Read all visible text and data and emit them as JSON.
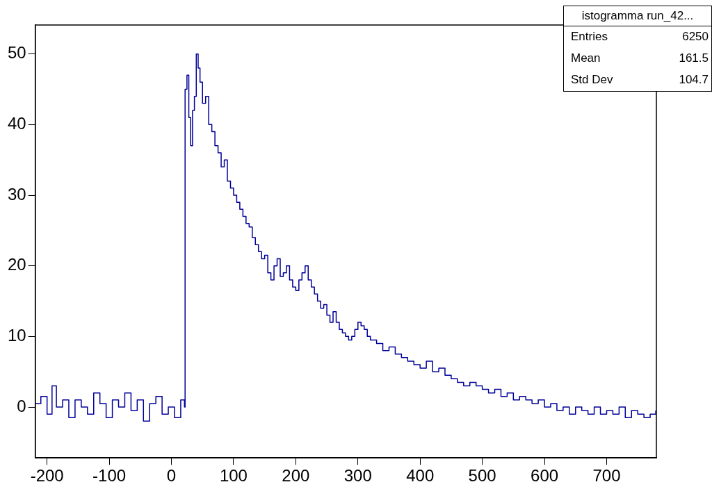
{
  "chart_data": {
    "type": "step",
    "xlim": [
      -219,
      780
    ],
    "ylim": [
      -7.2,
      54.1
    ],
    "xticks": [
      -200,
      -100,
      0,
      100,
      200,
      300,
      400,
      500,
      600,
      700
    ],
    "yticks": [
      0,
      10,
      20,
      30,
      40,
      50
    ],
    "grid": false,
    "legend": false,
    "marker": "none",
    "line_style": "solid",
    "annotations": [
      "istogramma run_42...",
      "Entries",
      "6250",
      "Mean",
      "161.5",
      "Std Dev",
      "104.7"
    ],
    "series": [
      {
        "color": "#000099",
        "x": [
          -219,
          -210,
          -200,
          -192,
          -185,
          -175,
          -165,
          -155,
          -145,
          -135,
          -125,
          -115,
          -105,
          -95,
          -85,
          -75,
          -65,
          -55,
          -45,
          -35,
          -25,
          -15,
          -5,
          5,
          15,
          21,
          22,
          25,
          28,
          31,
          34,
          37,
          40,
          43,
          46,
          50,
          55,
          60,
          65,
          70,
          75,
          80,
          85,
          90,
          95,
          100,
          105,
          110,
          115,
          120,
          125,
          130,
          135,
          140,
          145,
          150,
          155,
          160,
          165,
          170,
          175,
          180,
          185,
          190,
          195,
          200,
          205,
          210,
          215,
          220,
          225,
          230,
          235,
          240,
          245,
          250,
          255,
          260,
          265,
          270,
          275,
          280,
          285,
          290,
          295,
          300,
          305,
          310,
          315,
          320,
          330,
          340,
          350,
          360,
          370,
          380,
          390,
          400,
          410,
          420,
          430,
          440,
          450,
          460,
          470,
          480,
          490,
          500,
          510,
          520,
          530,
          540,
          550,
          560,
          570,
          580,
          590,
          600,
          610,
          620,
          630,
          640,
          650,
          660,
          670,
          680,
          690,
          700,
          710,
          720,
          730,
          740,
          750,
          760,
          770,
          779
        ],
        "values": [
          0.5,
          1.5,
          -1,
          3,
          0,
          1,
          -1.5,
          1,
          0,
          -1,
          2,
          0.5,
          -1.5,
          1,
          0,
          2,
          -0.5,
          1,
          -2,
          0.5,
          1.5,
          -1,
          0,
          -1.5,
          1,
          0,
          45,
          47,
          41,
          37,
          42,
          44,
          50,
          48,
          46,
          43,
          44,
          40,
          39,
          37,
          36,
          34,
          35,
          32,
          31,
          30,
          29,
          28,
          27,
          26,
          25.5,
          24,
          23,
          22,
          21,
          21.5,
          19,
          18,
          20,
          21,
          18.5,
          19,
          20,
          18,
          17,
          16.5,
          18,
          19,
          20,
          18,
          17,
          16,
          15,
          14,
          14.5,
          13,
          12,
          13.5,
          12,
          11,
          10.5,
          10,
          9.5,
          10,
          11,
          12,
          11.5,
          11,
          10,
          9.5,
          9,
          8,
          8.5,
          7.5,
          7,
          6.5,
          6,
          5.5,
          6.5,
          5,
          5.5,
          4.5,
          4,
          3.5,
          3,
          3.5,
          3,
          2.5,
          2,
          2.5,
          1.5,
          2,
          1,
          1.5,
          1,
          0.5,
          1,
          0,
          0.5,
          -0.5,
          0,
          -1,
          0,
          -0.5,
          -1,
          0,
          -1,
          -0.5,
          -1,
          0,
          -1.5,
          -0.5,
          -1,
          -1.5,
          -1,
          -0.5
        ]
      }
    ]
  }
}
